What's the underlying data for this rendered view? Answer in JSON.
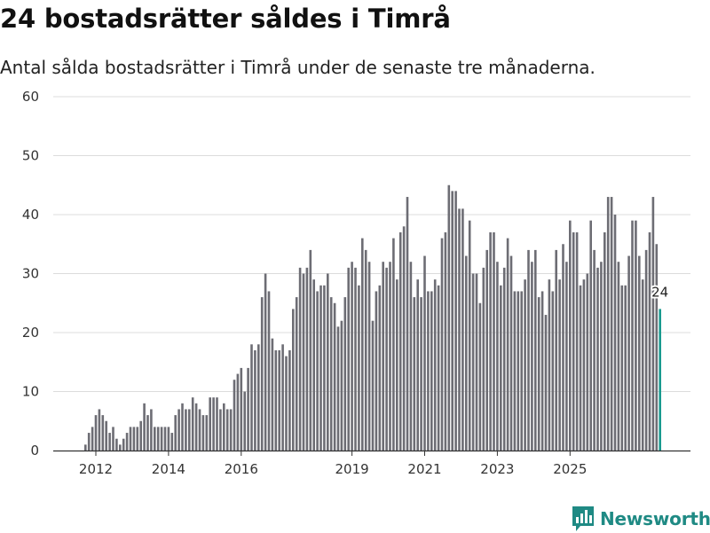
{
  "title": "24 bostadsrätter såldes i Timrå",
  "subtitle": "Antal sålda bostadsrätter i Timrå under de senaste tre månaderna.",
  "brand": {
    "name": "Newsworthy",
    "icon": "newsworthy-logo-icon",
    "color": "#1f8a84"
  },
  "chart_data": {
    "type": "bar",
    "title": "24 bostadsrätter såldes i Timrå",
    "ylabel": "",
    "xlabel": "",
    "ylim": [
      0,
      60
    ],
    "yticks": [
      "0",
      "10",
      "20",
      "30",
      "40",
      "50",
      "60"
    ],
    "xticks": [
      {
        "label": "2012",
        "index": 3
      },
      {
        "label": "2014",
        "index": 24
      },
      {
        "label": "2016",
        "index": 45
      },
      {
        "label": "2019",
        "index": 77
      },
      {
        "label": "2021",
        "index": 98
      },
      {
        "label": "2023",
        "index": 119
      },
      {
        "label": "2025",
        "index": 140
      }
    ],
    "bar_color": "#6d6d74",
    "highlight_color": "#1a9a8f",
    "grid": true,
    "highlight_label": "24",
    "period": "monthly, three-month rolling count",
    "values": [
      1,
      3,
      4,
      6,
      7,
      6,
      5,
      3,
      4,
      2,
      1,
      2,
      3,
      4,
      4,
      4,
      5,
      8,
      6,
      7,
      4,
      4,
      4,
      4,
      4,
      3,
      6,
      7,
      8,
      7,
      7,
      9,
      8,
      7,
      6,
      6,
      9,
      9,
      9,
      7,
      8,
      7,
      7,
      12,
      13,
      14,
      10,
      14,
      18,
      17,
      18,
      26,
      30,
      27,
      19,
      17,
      17,
      18,
      16,
      17,
      24,
      26,
      31,
      30,
      31,
      34,
      29,
      27,
      28,
      28,
      30,
      26,
      25,
      21,
      22,
      26,
      31,
      32,
      31,
      28,
      36,
      34,
      32,
      22,
      27,
      28,
      32,
      31,
      32,
      36,
      29,
      37,
      38,
      43,
      32,
      26,
      29,
      26,
      33,
      27,
      27,
      29,
      28,
      36,
      37,
      45,
      44,
      44,
      41,
      41,
      33,
      39,
      30,
      30,
      25,
      31,
      34,
      37,
      37,
      32,
      28,
      31,
      36,
      33,
      27,
      27,
      27,
      29,
      34,
      32,
      34,
      26,
      27,
      23,
      29,
      27,
      34,
      29,
      35,
      32,
      39,
      37,
      37,
      28,
      29,
      30,
      39,
      34,
      31,
      32,
      37,
      43,
      43,
      40,
      32,
      28,
      28,
      33,
      39,
      39,
      33,
      29,
      34,
      37,
      43,
      35,
      24
    ]
  }
}
